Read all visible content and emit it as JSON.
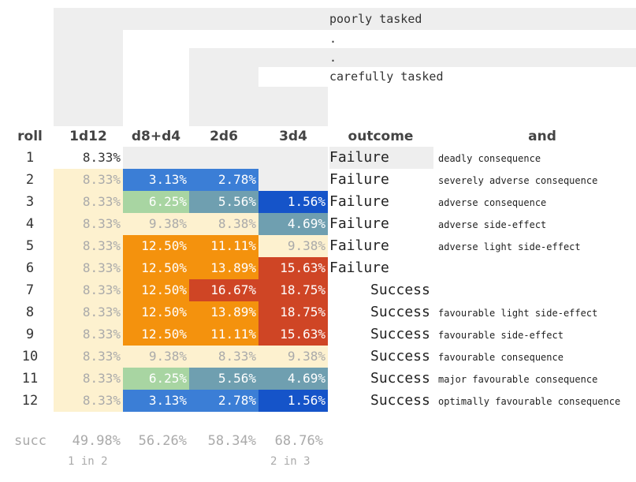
{
  "stair_labels": [
    "poorly tasked",
    ".",
    ".",
    "carefully tasked"
  ],
  "headers": {
    "roll": "roll",
    "d1": "1d12",
    "d2": "d8+d4",
    "d3": "2d6",
    "d4": "3d4",
    "outcome": "outcome",
    "and": "and"
  },
  "rows": [
    {
      "roll": "1",
      "c1": "8.33%",
      "c2": "",
      "c3": "",
      "c4": "",
      "outcome": "Failure",
      "consequence": "deadly consequence"
    },
    {
      "roll": "2",
      "c1": "8.33%",
      "c2": "3.13%",
      "c3": "2.78%",
      "c4": "",
      "outcome": "Failure",
      "consequence": "severely adverse consequence"
    },
    {
      "roll": "3",
      "c1": "8.33%",
      "c2": "6.25%",
      "c3": "5.56%",
      "c4": "1.56%",
      "outcome": "Failure",
      "consequence": "adverse consequence"
    },
    {
      "roll": "4",
      "c1": "8.33%",
      "c2": "9.38%",
      "c3": "8.38%",
      "c4": "4.69%",
      "outcome": "Failure",
      "consequence": "adverse side-effect"
    },
    {
      "roll": "5",
      "c1": "8.33%",
      "c2": "12.50%",
      "c3": "11.11%",
      "c4": "9.38%",
      "outcome": "Failure",
      "consequence": "adverse light side-effect"
    },
    {
      "roll": "6",
      "c1": "8.33%",
      "c2": "12.50%",
      "c3": "13.89%",
      "c4": "15.63%",
      "outcome": "Failure",
      "consequence": ""
    },
    {
      "roll": "7",
      "c1": "8.33%",
      "c2": "12.50%",
      "c3": "16.67%",
      "c4": "18.75%",
      "outcome": "Success",
      "consequence": ""
    },
    {
      "roll": "8",
      "c1": "8.33%",
      "c2": "12.50%",
      "c3": "13.89%",
      "c4": "18.75%",
      "outcome": "Success",
      "consequence": "favourable light side-effect"
    },
    {
      "roll": "9",
      "c1": "8.33%",
      "c2": "12.50%",
      "c3": "11.11%",
      "c4": "15.63%",
      "outcome": "Success",
      "consequence": "favourable side-effect"
    },
    {
      "roll": "10",
      "c1": "8.33%",
      "c2": "9.38%",
      "c3": "8.33%",
      "c4": "9.38%",
      "outcome": "Success",
      "consequence": "favourable consequence"
    },
    {
      "roll": "11",
      "c1": "8.33%",
      "c2": "6.25%",
      "c3": "5.56%",
      "c4": "4.69%",
      "outcome": "Success",
      "consequence": "major favourable consequence"
    },
    {
      "roll": "12",
      "c1": "8.33%",
      "c2": "3.13%",
      "c3": "2.78%",
      "c4": "1.56%",
      "outcome": "Success",
      "consequence": "optimally favourable consequence"
    }
  ],
  "colors": [
    [
      null,
      null,
      null,
      null,
      null,
      null
    ],
    [
      null,
      null,
      null,
      null,
      null,
      null
    ],
    [
      "#fdf1cf",
      "#3b7ed6",
      "#3b7ed6",
      null,
      null,
      null
    ],
    [
      "#fdf1cf",
      "#a8d5a2",
      "#6f9fb0",
      "#1554c9",
      null,
      null
    ],
    [
      "#fdf1cf",
      "#fdf1cf",
      "#fdf1cf",
      "#6f9fb0",
      null,
      null
    ],
    [
      "#fdf1cf",
      "#f4920d",
      "#f4920d",
      "#fdf1cf",
      null,
      null
    ],
    [
      "#fdf1cf",
      "#f4920d",
      "#f4920d",
      "#cf4525",
      null,
      null
    ],
    [
      "#fdf1cf",
      "#f4920d",
      "#cf4525",
      "#cf4525",
      null,
      null
    ],
    [
      "#fdf1cf",
      "#f4920d",
      "#f4920d",
      "#cf4525",
      null,
      null
    ],
    [
      "#fdf1cf",
      "#f4920d",
      "#f4920d",
      "#cf4525",
      null,
      null
    ],
    [
      "#fdf1cf",
      "#fdf1cf",
      "#fdf1cf",
      "#fdf1cf",
      null,
      null
    ],
    [
      "#fdf1cf",
      "#a8d5a2",
      "#6f9fb0",
      "#6f9fb0",
      null,
      null
    ],
    [
      "#fdf1cf",
      "#3b7ed6",
      "#3b7ed6",
      "#1554c9",
      null,
      null
    ]
  ],
  "footer": {
    "label": "succ",
    "c1": "49.98%",
    "c2": "56.26%",
    "c3": "58.34%",
    "c4": "68.76%",
    "odds1": "1 in 2",
    "odds4": "2 in 3"
  }
}
